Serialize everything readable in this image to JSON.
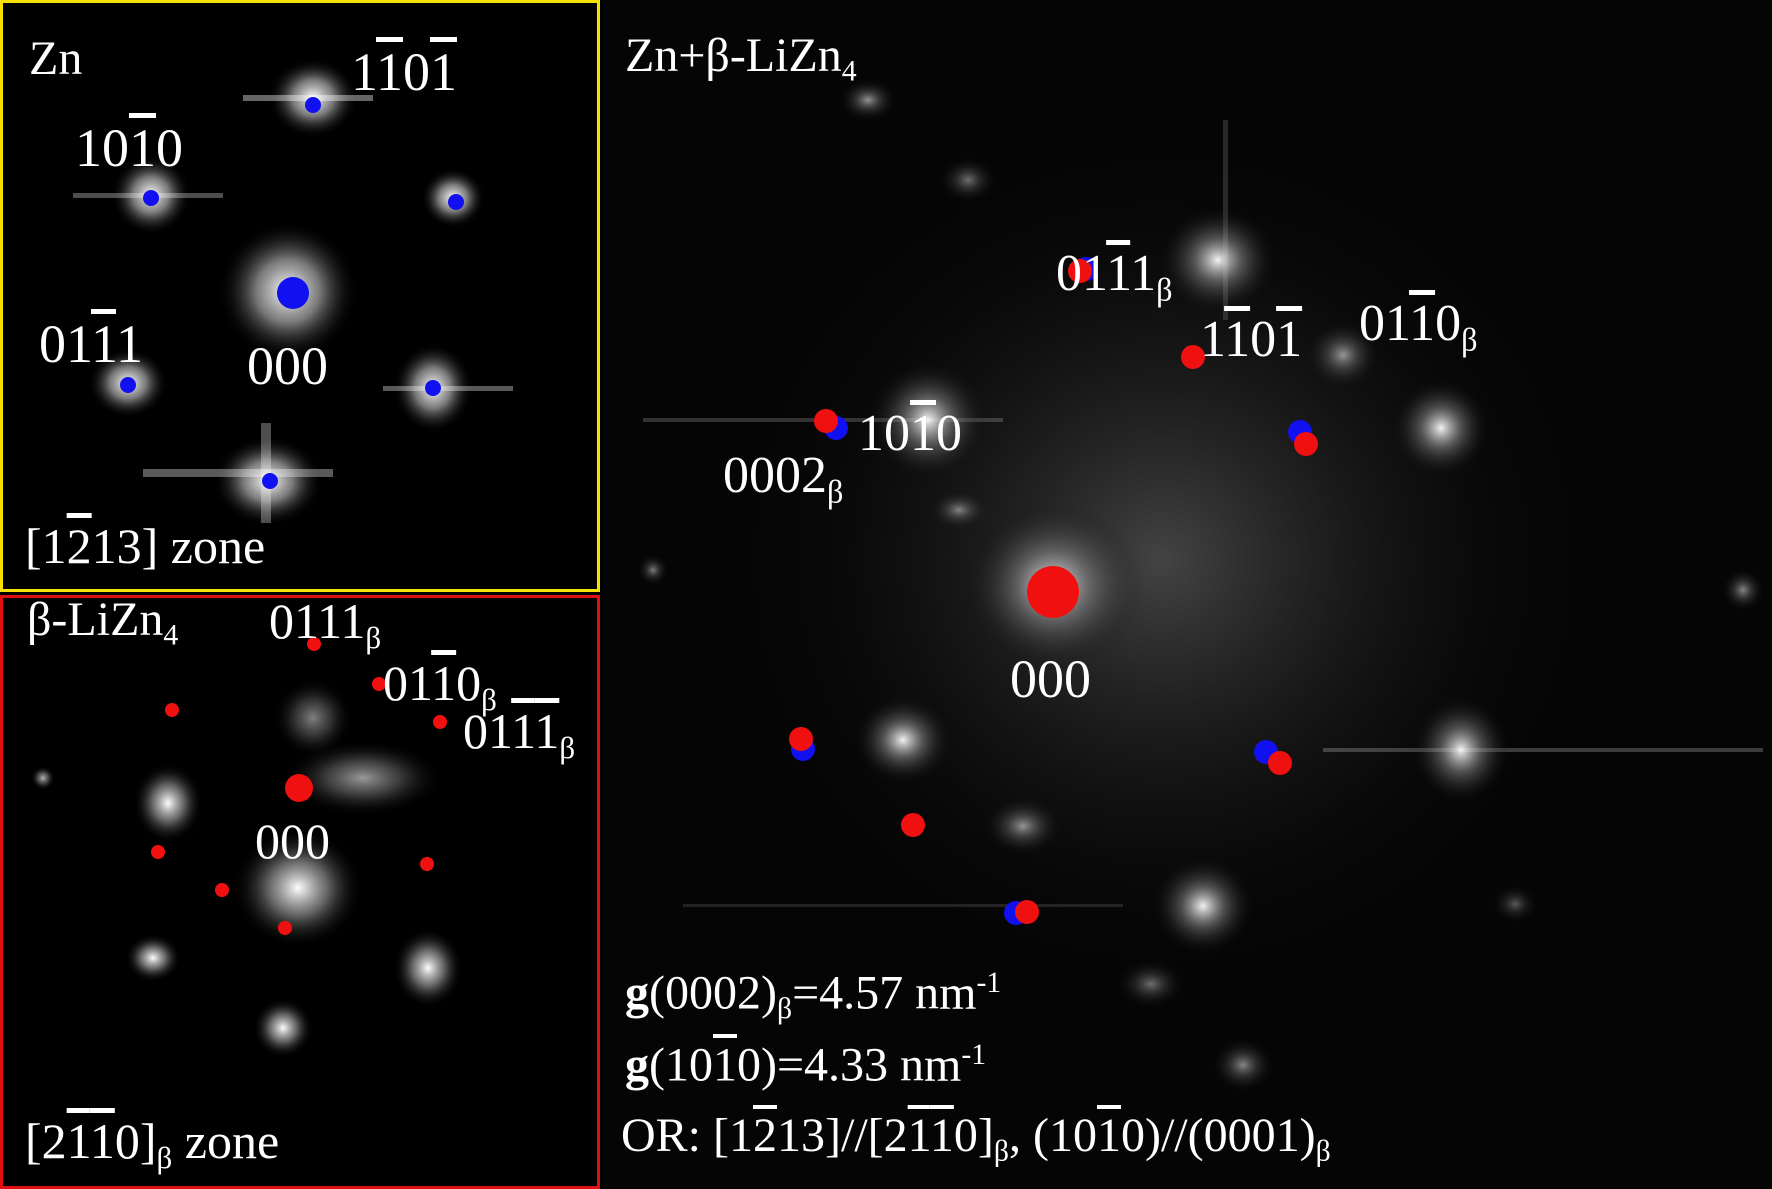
{
  "zn_panel": {
    "title": "Zn",
    "zone": [
      "[1",
      "2",
      "13] zone"
    ],
    "spots": {
      "s1": [
        "1",
        "1",
        "0",
        "1"
      ],
      "s2": [
        "10",
        "1",
        "0"
      ],
      "s3": [
        "01",
        "1",
        "1"
      ],
      "origin": "000"
    }
  },
  "li_panel": {
    "title": [
      "β-LiZn",
      "4"
    ],
    "zone": [
      "[2",
      "1",
      "1",
      "0]",
      "β",
      " zone"
    ],
    "spots": {
      "s1": [
        "01",
        "1",
        "1",
        "β"
      ],
      "s2": [
        "01",
        "1",
        "0",
        "β"
      ],
      "s3": [
        "01",
        "1",
        "1",
        "β"
      ],
      "origin": "000"
    }
  },
  "combo_panel": {
    "title": [
      "Zn+β-LiZn",
      "4"
    ],
    "spots": {
      "a": [
        "01",
        "1",
        "1",
        "β"
      ],
      "b": [
        "1",
        "1",
        "0",
        "1"
      ],
      "c": [
        "01",
        "1",
        "0",
        "β"
      ],
      "d": [
        "10",
        "1",
        "0"
      ],
      "e": [
        "0002",
        "β"
      ],
      "origin": "000"
    },
    "notes": {
      "g1": [
        "g",
        "(0002)",
        "β",
        "=4.57 nm",
        "-1"
      ],
      "g2": [
        "g",
        "(10",
        "1",
        "0)=4.33 nm",
        "-1"
      ],
      "or": [
        "OR: [1",
        "2",
        "13]//[2",
        "1",
        "1",
        "0]",
        "β",
        ", (10",
        "1",
        "0)//(0001)",
        "β"
      ]
    }
  },
  "colors": {
    "zn_spot": "#1010f0",
    "li_spot": "#f01010",
    "zn_border": "#f5e000",
    "li_border": "#e01010"
  }
}
